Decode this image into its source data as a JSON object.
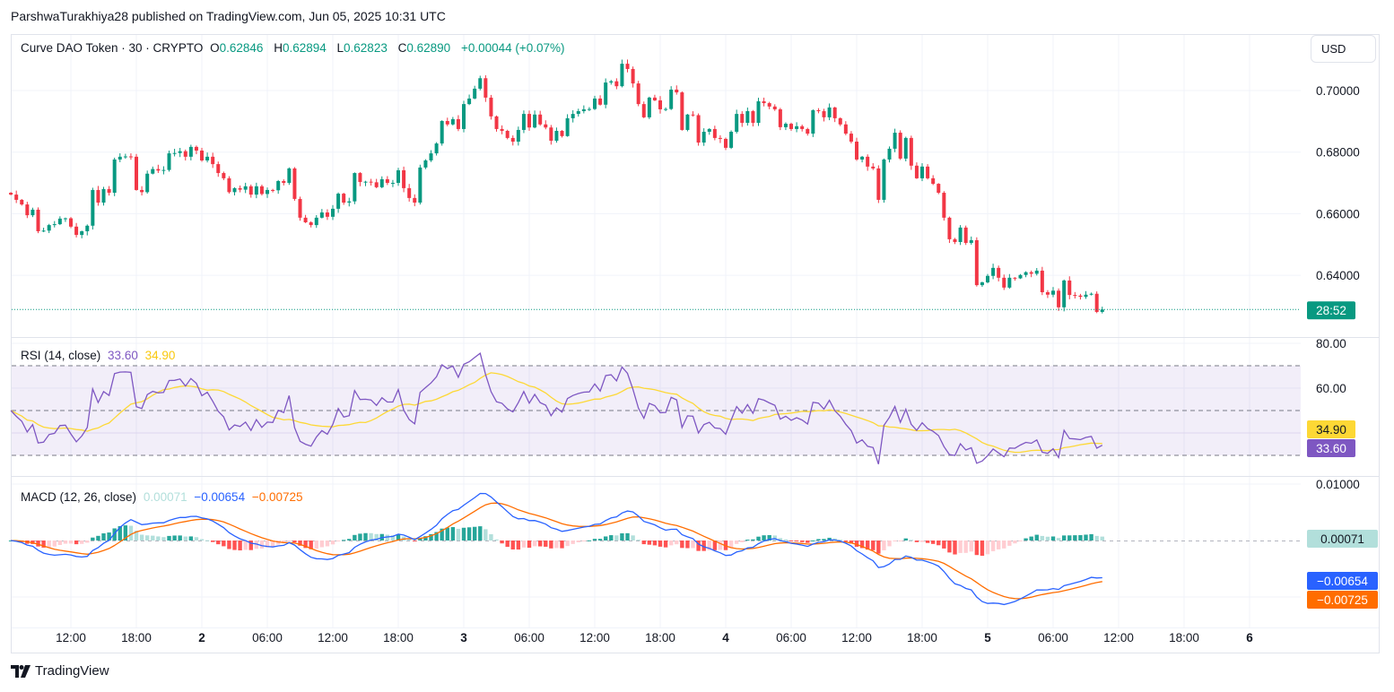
{
  "attribution": "ParshwaTurakhiya28 published on TradingView.com, Jun 05, 2025 10:31 UTC",
  "legend": {
    "symbol": "Curve DAO Token · 30 · CRYPTO",
    "o_label": "O",
    "o": "0.62846",
    "h_label": "H",
    "h": "0.62894",
    "l_label": "L",
    "l": "0.62823",
    "c_label": "C",
    "c": "0.62890",
    "change": "+0.00044 (+0.07%)"
  },
  "currency_button": "USD",
  "price_axis": {
    "ticks": [
      "0.70000",
      "0.68000",
      "0.66000",
      "0.64000"
    ],
    "countdown": "28:52"
  },
  "rsi": {
    "title": "RSI (14, close)",
    "value": "33.60",
    "ma_value": "34.90",
    "ticks": [
      "80.00",
      "60.00"
    ]
  },
  "macd": {
    "title": "MACD (12, 26, close)",
    "histogram": "0.00071",
    "macd": "−0.00654",
    "signal": "−0.00725",
    "ticks": [
      "0.01000"
    ],
    "histogram_label": "0.00071",
    "macd_label": "−0.00654",
    "signal_label": "−0.00725"
  },
  "time_axis": [
    {
      "label": "12:00",
      "bold": false
    },
    {
      "label": "18:00",
      "bold": false
    },
    {
      "label": "2",
      "bold": true
    },
    {
      "label": "06:00",
      "bold": false
    },
    {
      "label": "12:00",
      "bold": false
    },
    {
      "label": "18:00",
      "bold": false
    },
    {
      "label": "3",
      "bold": true
    },
    {
      "label": "06:00",
      "bold": false
    },
    {
      "label": "12:00",
      "bold": false
    },
    {
      "label": "18:00",
      "bold": false
    },
    {
      "label": "4",
      "bold": true
    },
    {
      "label": "06:00",
      "bold": false
    },
    {
      "label": "12:00",
      "bold": false
    },
    {
      "label": "18:00",
      "bold": false
    },
    {
      "label": "5",
      "bold": true
    },
    {
      "label": "06:00",
      "bold": false
    },
    {
      "label": "12:00",
      "bold": false
    },
    {
      "label": "18:00",
      "bold": false
    },
    {
      "label": "6",
      "bold": true
    }
  ],
  "footer": "TradingView",
  "colors": {
    "up": "#089981",
    "down": "#f23645",
    "rsi": "#7e57c2",
    "rsi_ma": "#fdd835",
    "macd": "#2962ff",
    "signal": "#ff6d00",
    "hist_up_strong": "#26a69a",
    "hist_up_weak": "#b2dfdb",
    "hist_down_strong": "#ff5252",
    "hist_down_weak": "#ffcdd2"
  },
  "chart_data": {
    "type": "candlestick",
    "title": "Curve DAO Token · 30 · CRYPTO",
    "interval_minutes": 30,
    "first_time_label_candle_index": 11,
    "candles_per_time_label": 12,
    "price_ticks": [
      0.7,
      0.68,
      0.66,
      0.64
    ],
    "rsi_ticks": [
      80,
      60
    ],
    "rsi_bands": [
      30,
      50,
      70
    ],
    "macd_ticks": [
      0.01
    ],
    "first_open": 0.6668,
    "last_price": 0.6289,
    "closes": [
      0.6662,
      0.6645,
      0.663,
      0.6595,
      0.6613,
      0.6543,
      0.6545,
      0.6563,
      0.6566,
      0.6584,
      0.6585,
      0.6558,
      0.6531,
      0.6543,
      0.6561,
      0.6677,
      0.6636,
      0.668,
      0.6668,
      0.6776,
      0.6785,
      0.6786,
      0.6785,
      0.6677,
      0.667,
      0.673,
      0.6745,
      0.674,
      0.6742,
      0.6796,
      0.6797,
      0.6803,
      0.6785,
      0.6817,
      0.6805,
      0.6773,
      0.6785,
      0.6761,
      0.6732,
      0.6715,
      0.667,
      0.6683,
      0.6678,
      0.6689,
      0.6662,
      0.6689,
      0.6664,
      0.6677,
      0.6676,
      0.6706,
      0.67,
      0.6747,
      0.6648,
      0.6587,
      0.6572,
      0.6563,
      0.6587,
      0.6604,
      0.659,
      0.6616,
      0.6665,
      0.6636,
      0.664,
      0.6732,
      0.6703,
      0.6704,
      0.6702,
      0.6686,
      0.6712,
      0.67,
      0.67,
      0.6741,
      0.6683,
      0.6651,
      0.6636,
      0.675,
      0.6773,
      0.6796,
      0.6828,
      0.6901,
      0.689,
      0.6907,
      0.6875,
      0.6956,
      0.6974,
      0.7006,
      0.704,
      0.6977,
      0.6916,
      0.6875,
      0.6869,
      0.6846,
      0.6834,
      0.6872,
      0.6924,
      0.688,
      0.6922,
      0.689,
      0.688,
      0.6837,
      0.6869,
      0.6852,
      0.691,
      0.6924,
      0.6933,
      0.6939,
      0.694,
      0.6974,
      0.6954,
      0.7026,
      0.703,
      0.7014,
      0.7087,
      0.707,
      0.7023,
      0.6956,
      0.6913,
      0.6977,
      0.6968,
      0.6939,
      0.694,
      0.7003,
      0.6994,
      0.6872,
      0.6922,
      0.692,
      0.6831,
      0.6866,
      0.6875,
      0.6846,
      0.6843,
      0.6814,
      0.6866,
      0.6924,
      0.6895,
      0.6933,
      0.6895,
      0.6965,
      0.6959,
      0.6948,
      0.6939,
      0.6881,
      0.6892,
      0.6875,
      0.6884,
      0.6875,
      0.686,
      0.6936,
      0.6933,
      0.6913,
      0.6945,
      0.691,
      0.689,
      0.686,
      0.6834,
      0.6776,
      0.6785,
      0.6753,
      0.6747,
      0.6645,
      0.6776,
      0.6811,
      0.6863,
      0.6779,
      0.6846,
      0.6756,
      0.6715,
      0.6753,
      0.6715,
      0.6697,
      0.6668,
      0.6587,
      0.6517,
      0.6508,
      0.6555,
      0.6505,
      0.6514,
      0.6368,
      0.6377,
      0.6398,
      0.6424,
      0.6392,
      0.636,
      0.6392,
      0.639,
      0.6401,
      0.641,
      0.6405,
      0.6415,
      0.6345,
      0.6337,
      0.635,
      0.6296,
      0.6383,
      0.6336,
      0.6334,
      0.633,
      0.6337,
      0.634,
      0.6281,
      0.6289
    ]
  }
}
